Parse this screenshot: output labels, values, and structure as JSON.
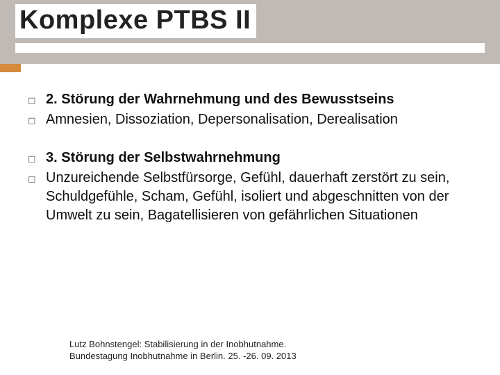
{
  "colors": {
    "header_band": "#bfbab5",
    "accent": "#d58a3b",
    "background": "#ffffff",
    "text": "#111111",
    "bullet": "#6b655e",
    "footer_text": "#222222"
  },
  "title": {
    "text": "Komplexe PTBS II",
    "fontsize": 38,
    "fontweight": "bold"
  },
  "body_fontsize": 20,
  "bullet_glyph": "◻",
  "groups": [
    {
      "items": [
        {
          "text": "2. Störung der Wahrnehmung und des Bewusstseins",
          "bold": true
        },
        {
          "text": "Amnesien, Dissoziation, Depersonalisation, Derealisation",
          "bold": false
        }
      ]
    },
    {
      "items": [
        {
          "text": "3. Störung der Selbstwahrnehmung",
          "bold": true
        },
        {
          "text": "Unzureichende Selbstfürsorge, Gefühl, dauerhaft zerstört zu sein, Schuldgefühle, Scham, Gefühl, isoliert und abgeschnitten von der Umwelt zu sein, Bagatellisieren von gefährlichen Situationen",
          "bold": false
        }
      ]
    }
  ],
  "footer": {
    "line1": "Lutz Bohnstengel: Stabilisierung in der Inobhutnahme.",
    "line2": "Bundestagung Inobhutnahme in Berlin. 25. -26. 09. 2013",
    "fontsize": 13
  }
}
